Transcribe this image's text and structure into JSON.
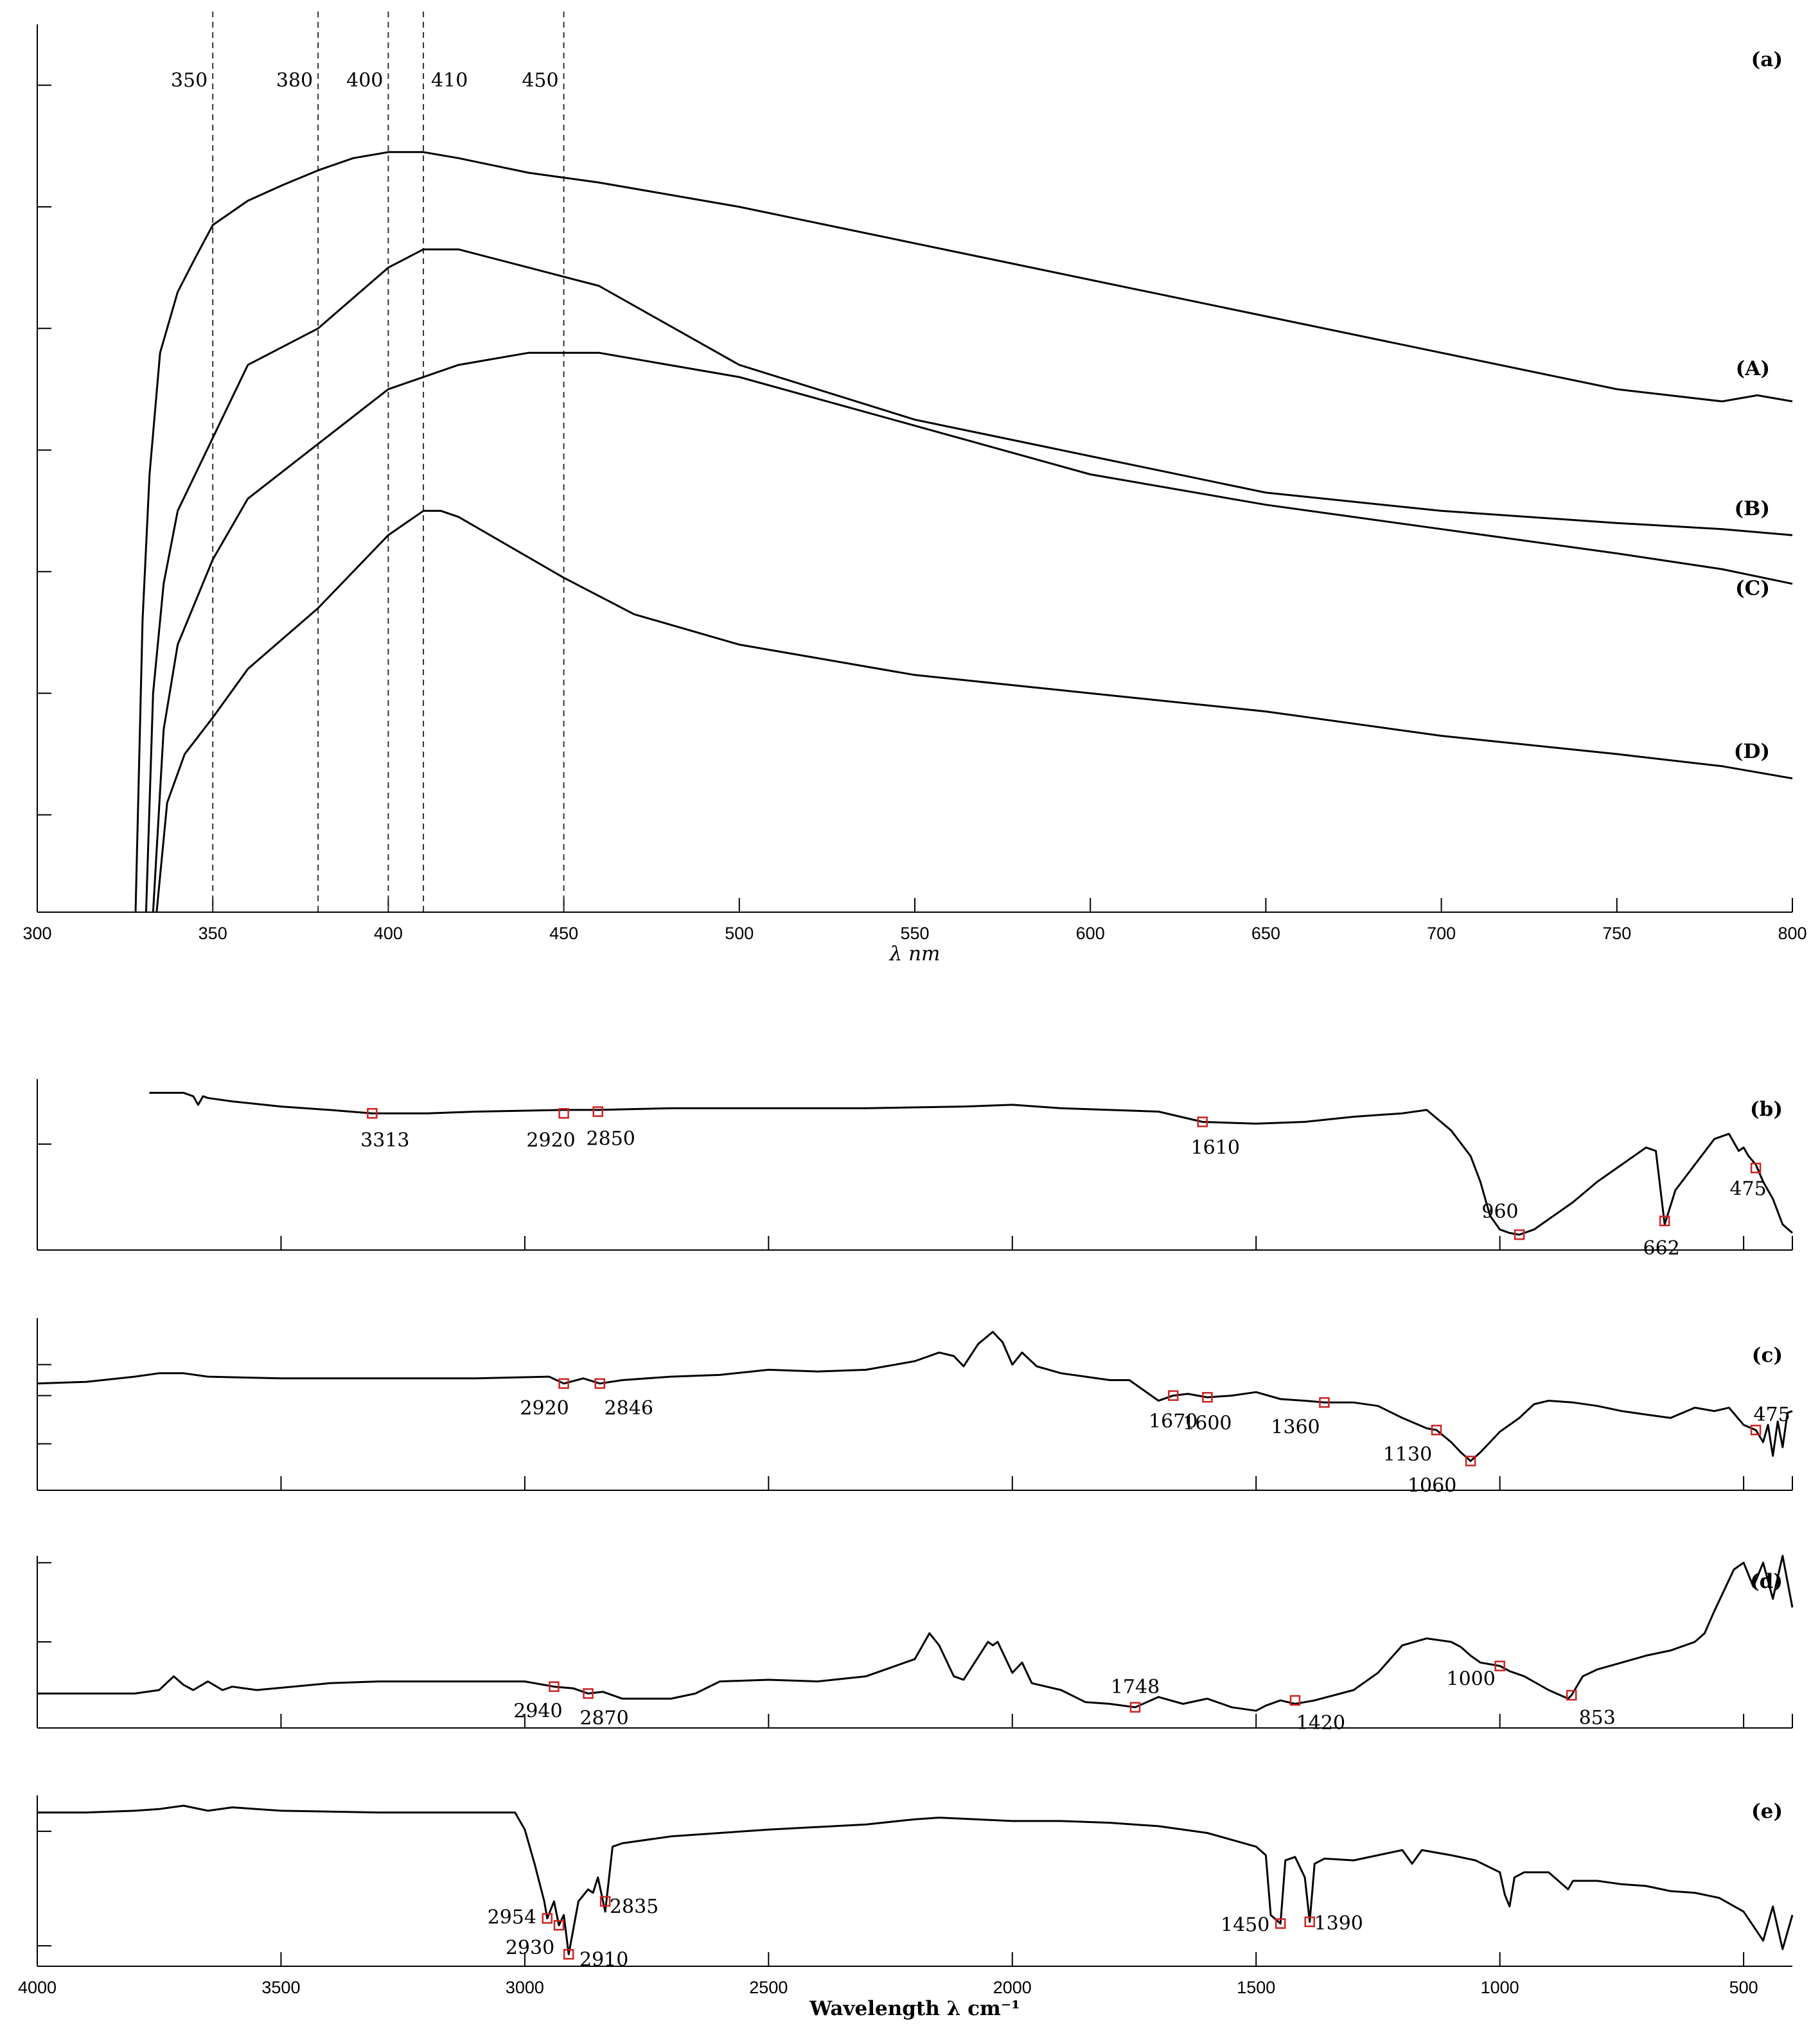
{
  "colors": {
    "line": "#000000",
    "axis": "#000000",
    "marker": "#cc2222",
    "guide": "#333333"
  },
  "chart_data": [
    {
      "id": "a",
      "type": "line",
      "panel_label": "(a)",
      "xlabel": "λ nm",
      "xlim": [
        300,
        800
      ],
      "ylim": [
        0,
        7.3
      ],
      "xticks": [
        300,
        350,
        400,
        450,
        500,
        550,
        600,
        650,
        700,
        750,
        800
      ],
      "yticks": [
        0.8,
        1.8,
        2.8,
        3.8,
        4.8,
        5.8,
        6.8
      ],
      "reference_lines": [
        {
          "x": 350,
          "label": "350"
        },
        {
          "x": 380,
          "label": "380"
        },
        {
          "x": 400,
          "label": "400"
        },
        {
          "x": 410,
          "label": "410"
        },
        {
          "x": 450,
          "label": "450"
        }
      ],
      "series": [
        {
          "name": "(A)",
          "x": [
            328,
            330,
            332,
            335,
            340,
            345,
            350,
            360,
            370,
            380,
            390,
            400,
            410,
            420,
            440,
            460,
            500,
            550,
            600,
            650,
            700,
            750,
            780,
            790,
            800
          ],
          "y": [
            0,
            2.4,
            3.6,
            4.6,
            5.1,
            5.38,
            5.65,
            5.85,
            5.98,
            6.1,
            6.2,
            6.25,
            6.25,
            6.2,
            6.08,
            6.0,
            5.8,
            5.5,
            5.2,
            4.9,
            4.6,
            4.3,
            4.2,
            4.25,
            4.2
          ]
        },
        {
          "name": "(B)",
          "x": [
            331,
            333,
            336,
            340,
            350,
            360,
            380,
            400,
            410,
            420,
            440,
            460,
            500,
            550,
            600,
            650,
            700,
            750,
            780,
            800
          ],
          "y": [
            0,
            1.8,
            2.7,
            3.3,
            3.9,
            4.5,
            4.8,
            5.3,
            5.45,
            5.45,
            5.3,
            5.15,
            4.5,
            4.05,
            3.75,
            3.45,
            3.3,
            3.2,
            3.15,
            3.1
          ]
        },
        {
          "name": "(C)",
          "x": [
            333,
            336,
            340,
            350,
            360,
            380,
            400,
            420,
            440,
            460,
            480,
            500,
            550,
            600,
            650,
            700,
            750,
            780,
            800
          ],
          "y": [
            0,
            1.5,
            2.2,
            2.9,
            3.4,
            3.85,
            4.3,
            4.5,
            4.6,
            4.6,
            4.5,
            4.4,
            4.0,
            3.6,
            3.35,
            3.15,
            2.95,
            2.82,
            2.7
          ]
        },
        {
          "name": "(D)",
          "x": [
            334,
            337,
            342,
            350,
            360,
            380,
            400,
            410,
            415,
            420,
            450,
            470,
            500,
            550,
            600,
            650,
            700,
            750,
            780,
            790,
            800
          ],
          "y": [
            0,
            0.9,
            1.3,
            1.6,
            2.0,
            2.5,
            3.1,
            3.3,
            3.3,
            3.25,
            2.75,
            2.45,
            2.2,
            1.95,
            1.8,
            1.65,
            1.45,
            1.3,
            1.2,
            1.15,
            1.1
          ]
        }
      ]
    },
    {
      "id": "b",
      "type": "line",
      "panel_label": "(b)",
      "xlim": [
        4000,
        400
      ],
      "ylim": [
        0,
        1
      ],
      "xticks": [
        3500,
        3000,
        2500,
        2000,
        1500,
        1000,
        500
      ],
      "yticks": [
        0.62
      ],
      "series": [
        {
          "x": [
            3770,
            3700,
            3680,
            3670,
            3660,
            3650,
            3600,
            3500,
            3400,
            3313,
            3200,
            3100,
            2920,
            2850,
            2700,
            2500,
            2300,
            2100,
            2000,
            1900,
            1800,
            1700,
            1610,
            1500,
            1400,
            1300,
            1200,
            1150,
            1100,
            1060,
            1040,
            1020,
            1000,
            980,
            960,
            930,
            900,
            850,
            800,
            750,
            700,
            680,
            662,
            640,
            600,
            560,
            530,
            510,
            500,
            490,
            475,
            460,
            440,
            420,
            400
          ],
          "y": [
            0.92,
            0.92,
            0.9,
            0.85,
            0.9,
            0.89,
            0.87,
            0.84,
            0.82,
            0.8,
            0.8,
            0.81,
            0.82,
            0.82,
            0.83,
            0.83,
            0.83,
            0.84,
            0.85,
            0.83,
            0.82,
            0.81,
            0.75,
            0.74,
            0.75,
            0.78,
            0.8,
            0.82,
            0.7,
            0.55,
            0.4,
            0.2,
            0.12,
            0.1,
            0.09,
            0.12,
            0.18,
            0.28,
            0.4,
            0.5,
            0.6,
            0.58,
            0.15,
            0.35,
            0.5,
            0.65,
            0.68,
            0.58,
            0.6,
            0.55,
            0.5,
            0.4,
            0.3,
            0.15,
            0.1
          ]
        }
      ],
      "peaks": [
        {
          "x": 3313,
          "y": 0.8,
          "label": "3313"
        },
        {
          "x": 2920,
          "y": 0.8,
          "label": "2920"
        },
        {
          "x": 2850,
          "y": 0.81,
          "label": "2850"
        },
        {
          "x": 1610,
          "y": 0.75,
          "label": "1610"
        },
        {
          "x": 960,
          "y": 0.09,
          "label": "960"
        },
        {
          "x": 662,
          "y": 0.17,
          "label": "662"
        },
        {
          "x": 475,
          "y": 0.48,
          "label": "475"
        }
      ]
    },
    {
      "id": "c",
      "type": "line",
      "panel_label": "(c)",
      "xlim": [
        4000,
        400
      ],
      "ylim": [
        0,
        1
      ],
      "xticks": [
        3500,
        3000,
        2500,
        2000,
        1500,
        1000,
        500
      ],
      "yticks": [
        0.27,
        0.55,
        0.73
      ],
      "series": [
        {
          "x": [
            4000,
            3900,
            3800,
            3750,
            3700,
            3650,
            3500,
            3300,
            3100,
            2950,
            2920,
            2880,
            2846,
            2800,
            2700,
            2600,
            2500,
            2400,
            2300,
            2200,
            2150,
            2120,
            2100,
            2070,
            2040,
            2020,
            2000,
            1980,
            1950,
            1900,
            1850,
            1800,
            1760,
            1700,
            1670,
            1640,
            1600,
            1550,
            1500,
            1450,
            1400,
            1360,
            1300,
            1250,
            1200,
            1150,
            1130,
            1100,
            1080,
            1060,
            1040,
            1000,
            960,
            930,
            900,
            850,
            800,
            750,
            700,
            650,
            600,
            560,
            530,
            500,
            475,
            460,
            450,
            440,
            430,
            420,
            410,
            400
          ],
          "y": [
            0.62,
            0.63,
            0.66,
            0.68,
            0.68,
            0.66,
            0.65,
            0.65,
            0.65,
            0.66,
            0.62,
            0.65,
            0.62,
            0.64,
            0.66,
            0.67,
            0.7,
            0.69,
            0.7,
            0.75,
            0.8,
            0.78,
            0.72,
            0.85,
            0.92,
            0.86,
            0.73,
            0.8,
            0.72,
            0.68,
            0.66,
            0.64,
            0.64,
            0.52,
            0.55,
            0.56,
            0.54,
            0.55,
            0.57,
            0.53,
            0.52,
            0.51,
            0.51,
            0.49,
            0.42,
            0.36,
            0.35,
            0.28,
            0.22,
            0.17,
            0.22,
            0.34,
            0.42,
            0.5,
            0.52,
            0.51,
            0.49,
            0.46,
            0.44,
            0.42,
            0.48,
            0.46,
            0.48,
            0.38,
            0.35,
            0.28,
            0.38,
            0.2,
            0.4,
            0.25,
            0.45,
            0.46
          ]
        }
      ],
      "peaks": [
        {
          "x": 2920,
          "y": 0.62,
          "label": "2920"
        },
        {
          "x": 2846,
          "y": 0.62,
          "label": "2846"
        },
        {
          "x": 1670,
          "y": 0.55,
          "label": "1670"
        },
        {
          "x": 1600,
          "y": 0.54,
          "label": "1600"
        },
        {
          "x": 1360,
          "y": 0.51,
          "label": "1360"
        },
        {
          "x": 1130,
          "y": 0.35,
          "label": "1130"
        },
        {
          "x": 1060,
          "y": 0.17,
          "label": "1060"
        },
        {
          "x": 475,
          "y": 0.35,
          "label": "475"
        }
      ]
    },
    {
      "id": "d",
      "type": "line",
      "panel_label": "(d)",
      "xlim": [
        4000,
        400
      ],
      "ylim": [
        0,
        1
      ],
      "xticks": [
        3500,
        3000,
        2500,
        2000,
        1500,
        1000,
        500
      ],
      "yticks": [
        0.5,
        0.96
      ],
      "series": [
        {
          "x": [
            4000,
            3900,
            3800,
            3750,
            3720,
            3700,
            3680,
            3650,
            3620,
            3600,
            3550,
            3400,
            3300,
            3200,
            3000,
            2940,
            2900,
            2870,
            2840,
            2800,
            2700,
            2650,
            2600,
            2500,
            2400,
            2300,
            2200,
            2170,
            2150,
            2120,
            2100,
            2050,
            2040,
            2030,
            2000,
            1980,
            1960,
            1900,
            1850,
            1800,
            1748,
            1700,
            1650,
            1600,
            1550,
            1500,
            1480,
            1450,
            1420,
            1380,
            1300,
            1250,
            1200,
            1150,
            1100,
            1080,
            1060,
            1040,
            1000,
            980,
            950,
            900,
            860,
            853,
            830,
            800,
            750,
            700,
            650,
            600,
            580,
            560,
            540,
            520,
            500,
            480,
            460,
            440,
            420,
            400
          ],
          "y": [
            0.2,
            0.2,
            0.2,
            0.22,
            0.3,
            0.25,
            0.22,
            0.27,
            0.22,
            0.24,
            0.22,
            0.26,
            0.27,
            0.27,
            0.27,
            0.24,
            0.23,
            0.2,
            0.21,
            0.17,
            0.17,
            0.2,
            0.27,
            0.28,
            0.27,
            0.3,
            0.4,
            0.55,
            0.48,
            0.3,
            0.28,
            0.5,
            0.48,
            0.5,
            0.32,
            0.38,
            0.26,
            0.22,
            0.15,
            0.14,
            0.12,
            0.18,
            0.14,
            0.17,
            0.12,
            0.1,
            0.13,
            0.16,
            0.14,
            0.16,
            0.22,
            0.32,
            0.48,
            0.52,
            0.5,
            0.47,
            0.42,
            0.38,
            0.36,
            0.33,
            0.3,
            0.22,
            0.17,
            0.19,
            0.3,
            0.34,
            0.38,
            0.42,
            0.45,
            0.5,
            0.55,
            0.68,
            0.8,
            0.92,
            0.96,
            0.82,
            0.96,
            0.75,
            1.0,
            0.7
          ]
        }
      ],
      "peaks": [
        {
          "x": 2940,
          "y": 0.24,
          "label": "2940"
        },
        {
          "x": 2870,
          "y": 0.2,
          "label": "2870"
        },
        {
          "x": 1748,
          "y": 0.12,
          "label": "1748"
        },
        {
          "x": 1420,
          "y": 0.16,
          "label": "1420"
        },
        {
          "x": 1000,
          "y": 0.36,
          "label": "1000"
        },
        {
          "x": 853,
          "y": 0.19,
          "label": "853"
        }
      ]
    },
    {
      "id": "e",
      "type": "line",
      "panel_label": "(e)",
      "xlabel": "Wavelength λ cm⁻¹",
      "xlim": [
        4000,
        400
      ],
      "ylim": [
        0,
        1
      ],
      "xticks": [
        4000,
        3500,
        3000,
        2500,
        2000,
        1500,
        1000,
        500
      ],
      "yticks": [
        0.12,
        0.79
      ],
      "series": [
        {
          "x": [
            4000,
            3900,
            3800,
            3750,
            3700,
            3650,
            3600,
            3500,
            3300,
            3100,
            3020,
            3000,
            2980,
            2960,
            2954,
            2940,
            2930,
            2920,
            2910,
            2890,
            2870,
            2860,
            2850,
            2835,
            2820,
            2800,
            2700,
            2500,
            2300,
            2200,
            2150,
            2000,
            1900,
            1800,
            1700,
            1600,
            1500,
            1480,
            1470,
            1450,
            1440,
            1420,
            1400,
            1390,
            1380,
            1360,
            1300,
            1250,
            1200,
            1180,
            1160,
            1100,
            1050,
            1000,
            990,
            980,
            970,
            950,
            900,
            860,
            850,
            800,
            750,
            700,
            650,
            600,
            550,
            500,
            460,
            440,
            420,
            400
          ],
          "y": [
            0.9,
            0.9,
            0.91,
            0.92,
            0.94,
            0.91,
            0.93,
            0.91,
            0.9,
            0.9,
            0.9,
            0.8,
            0.6,
            0.38,
            0.28,
            0.38,
            0.24,
            0.3,
            0.07,
            0.38,
            0.45,
            0.43,
            0.52,
            0.32,
            0.7,
            0.72,
            0.76,
            0.8,
            0.83,
            0.86,
            0.87,
            0.85,
            0.85,
            0.84,
            0.82,
            0.78,
            0.7,
            0.65,
            0.3,
            0.25,
            0.62,
            0.64,
            0.52,
            0.26,
            0.6,
            0.63,
            0.62,
            0.65,
            0.68,
            0.6,
            0.68,
            0.65,
            0.62,
            0.55,
            0.42,
            0.35,
            0.52,
            0.55,
            0.55,
            0.45,
            0.5,
            0.5,
            0.48,
            0.47,
            0.44,
            0.43,
            0.4,
            0.32,
            0.15,
            0.35,
            0.1,
            0.3
          ]
        }
      ],
      "peaks": [
        {
          "x": 2954,
          "y": 0.28,
          "label": "2954"
        },
        {
          "x": 2930,
          "y": 0.24,
          "label": "2930"
        },
        {
          "x": 2910,
          "y": 0.07,
          "label": "2910"
        },
        {
          "x": 2835,
          "y": 0.38,
          "label": "2835"
        },
        {
          "x": 1450,
          "y": 0.25,
          "label": "1450"
        },
        {
          "x": 1390,
          "y": 0.26,
          "label": "1390"
        }
      ]
    }
  ]
}
